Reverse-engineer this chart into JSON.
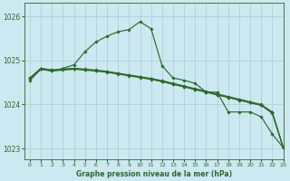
{
  "background_color": "#cce8f0",
  "grid_color": "#a8cdd8",
  "line_color": "#2d6a2d",
  "marker_color": "#2d6a2d",
  "title": "Graphe pression niveau de la mer (hPa)",
  "xlim": [
    -0.5,
    23
  ],
  "ylim": [
    1022.75,
    1026.3
  ],
  "yticks": [
    1023,
    1024,
    1025,
    1026
  ],
  "xticks": [
    0,
    1,
    2,
    3,
    4,
    5,
    6,
    7,
    8,
    9,
    10,
    11,
    12,
    13,
    14,
    15,
    16,
    17,
    18,
    19,
    20,
    21,
    22,
    23
  ],
  "series_flat": [
    {
      "x": [
        0,
        1,
        2,
        3,
        4,
        5,
        6,
        7,
        8,
        9,
        10,
        11,
        12,
        13,
        14,
        15,
        16,
        17,
        18,
        19,
        20,
        21,
        22,
        23
      ],
      "y": [
        1024.6,
        1024.82,
        1024.78,
        1024.8,
        1024.82,
        1024.79,
        1024.77,
        1024.74,
        1024.7,
        1024.66,
        1024.62,
        1024.58,
        1024.52,
        1024.46,
        1024.4,
        1024.34,
        1024.28,
        1024.22,
        1024.16,
        1024.1,
        1024.04,
        1023.98,
        1023.82,
        1023.02
      ]
    },
    {
      "x": [
        0,
        1,
        2,
        3,
        4,
        5,
        6,
        7,
        8,
        9,
        10,
        11,
        12,
        13,
        14,
        15,
        16,
        17,
        18,
        19,
        20,
        21,
        22,
        23
      ],
      "y": [
        1024.6,
        1024.82,
        1024.78,
        1024.8,
        1024.82,
        1024.8,
        1024.78,
        1024.75,
        1024.71,
        1024.67,
        1024.63,
        1024.59,
        1024.54,
        1024.48,
        1024.42,
        1024.36,
        1024.3,
        1024.24,
        1024.18,
        1024.12,
        1024.06,
        1024.0,
        1023.83,
        1023.02
      ]
    },
    {
      "x": [
        0,
        1,
        2,
        3,
        4,
        5,
        6,
        7,
        8,
        9,
        10,
        11,
        12,
        13,
        14,
        15,
        16,
        17,
        18,
        19,
        20,
        21,
        22,
        23
      ],
      "y": [
        1024.58,
        1024.8,
        1024.76,
        1024.78,
        1024.8,
        1024.78,
        1024.76,
        1024.73,
        1024.69,
        1024.65,
        1024.61,
        1024.57,
        1024.52,
        1024.46,
        1024.4,
        1024.34,
        1024.28,
        1024.22,
        1024.16,
        1024.1,
        1024.04,
        1023.98,
        1023.8,
        1023.02
      ]
    }
  ],
  "series_peak": {
    "x": [
      0,
      1,
      2,
      3,
      4,
      5,
      6,
      7,
      8,
      9,
      10,
      11,
      12,
      13,
      14,
      15,
      16,
      17,
      18,
      19,
      20,
      21,
      22,
      23
    ],
    "y": [
      1024.55,
      1024.8,
      1024.76,
      1024.82,
      1024.9,
      1025.2,
      1025.42,
      1025.55,
      1025.65,
      1025.7,
      1025.88,
      1025.72,
      1024.88,
      1024.6,
      1024.55,
      1024.48,
      1024.28,
      1024.28,
      1023.83,
      1023.83,
      1023.83,
      1023.72,
      1023.33,
      1023.02
    ]
  }
}
